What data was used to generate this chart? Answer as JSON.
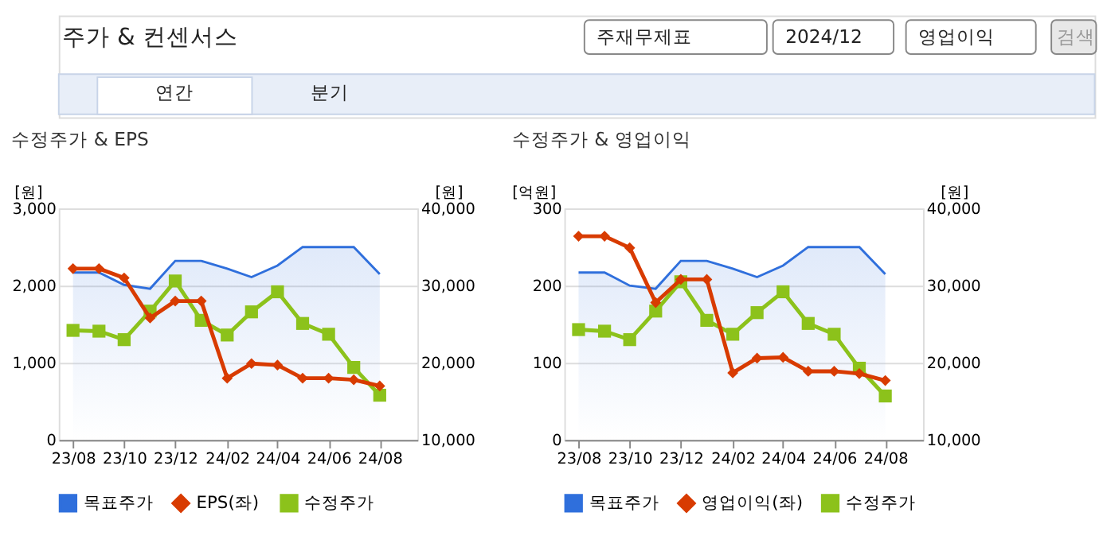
{
  "chart_data": [
    {
      "type": "other",
      "title": "주가 & 컨센서스",
      "annotations": [
        "주재무제표",
        "2024/12",
        "영업이익",
        "검색",
        "연간",
        "분기"
      ]
    },
    {
      "type": "line",
      "title": "수정주가 & EPS",
      "ylabel": "[원]",
      "y2label": "[원]",
      "x": [
        "2023-08",
        "2023-09",
        "2023-10",
        "2023-11",
        "2023-12",
        "2024-01",
        "2024-02",
        "2024-03",
        "2024-04",
        "2024-05",
        "2024-06",
        "2024-07",
        "2024-08"
      ],
      "xlim": [
        "2023-07-15",
        "2024-09-15"
      ],
      "xticks": [
        {
          "value": "2023-08",
          "label": "23/08"
        },
        {
          "value": "2023-10",
          "label": "23/10"
        },
        {
          "value": "2023-12",
          "label": "23/12"
        },
        {
          "value": "2024-02",
          "label": "24/02"
        },
        {
          "value": "2024-04",
          "label": "24/04"
        },
        {
          "value": "2024-06",
          "label": "24/06"
        },
        {
          "value": "2024-08",
          "label": "24/08"
        }
      ],
      "ylim": [
        0,
        3000
      ],
      "yticks": [
        0,
        {
          "value": 1000,
          "label": "1,000"
        },
        {
          "value": 2000,
          "label": "2,000"
        },
        {
          "value": 3000,
          "label": "3,000"
        }
      ],
      "y2lim": [
        10000,
        40000
      ],
      "y2ticks": [
        {
          "value": 10000,
          "label": "10,000"
        },
        {
          "value": 20000,
          "label": "20,000"
        },
        {
          "value": 30000,
          "label": "30,000"
        },
        {
          "value": 40000,
          "label": "40,000"
        }
      ],
      "grid": "y",
      "legend": "bottom",
      "line_style": "solid",
      "series": [
        {
          "name": "목표주가",
          "type": "area",
          "axis": "y2",
          "color": "#2f6fdc",
          "marker": "none",
          "values": [
            31700,
            31700,
            30100,
            29600,
            33200,
            33200,
            32200,
            31100,
            32600,
            35000,
            35000,
            35000,
            31500
          ]
        },
        {
          "name": "EPS(좌)",
          "type": "line",
          "color": "#d83b01",
          "marker": "diamond",
          "values": [
            2220,
            2220,
            2100,
            1580,
            1800,
            1800,
            800,
            990,
            970,
            800,
            800,
            780,
            700
          ]
        },
        {
          "name": "수정주가",
          "type": "line",
          "axis": "y2",
          "color": "#8cc21b",
          "marker": "square",
          "values": [
            24200,
            24100,
            23000,
            26700,
            30600,
            25500,
            23600,
            26600,
            29200,
            25100,
            23700,
            19400,
            15800
          ]
        }
      ]
    },
    {
      "type": "line",
      "title": "수정주가 & 영업이익",
      "ylabel": "[억원]",
      "y2label": "[원]",
      "x": [
        "2023-08",
        "2023-09",
        "2023-10",
        "2023-11",
        "2023-12",
        "2024-01",
        "2024-02",
        "2024-03",
        "2024-04",
        "2024-05",
        "2024-06",
        "2024-07",
        "2024-08"
      ],
      "xlim": [
        "2023-07-15",
        "2024-09-15"
      ],
      "xticks": [
        {
          "value": "2023-08",
          "label": "23/08"
        },
        {
          "value": "2023-10",
          "label": "23/10"
        },
        {
          "value": "2023-12",
          "label": "23/12"
        },
        {
          "value": "2024-02",
          "label": "24/02"
        },
        {
          "value": "2024-04",
          "label": "24/04"
        },
        {
          "value": "2024-06",
          "label": "24/06"
        },
        {
          "value": "2024-08",
          "label": "24/08"
        }
      ],
      "ylim": [
        0,
        300
      ],
      "yticks": [
        0,
        100,
        200,
        300
      ],
      "y2lim": [
        10000,
        40000
      ],
      "y2ticks": [
        {
          "value": 10000,
          "label": "10,000"
        },
        {
          "value": 20000,
          "label": "20,000"
        },
        {
          "value": 30000,
          "label": "30,000"
        },
        {
          "value": 40000,
          "label": "40,000"
        }
      ],
      "grid": "y",
      "legend": "bottom",
      "line_style": "solid",
      "series": [
        {
          "name": "목표주가",
          "type": "area",
          "axis": "y2",
          "color": "#2f6fdc",
          "marker": "none",
          "values": [
            31700,
            31700,
            30000,
            29600,
            33200,
            33200,
            32200,
            31100,
            32600,
            35000,
            35000,
            35000,
            31500
          ]
        },
        {
          "name": "영업이익(좌)",
          "type": "line",
          "color": "#d83b01",
          "marker": "diamond",
          "values": [
            264,
            264,
            249,
            178,
            208,
            208,
            87,
            106,
            107,
            89,
            89,
            86,
            77
          ]
        },
        {
          "name": "수정주가",
          "type": "line",
          "axis": "y2",
          "color": "#8cc21b",
          "marker": "square",
          "values": [
            24300,
            24100,
            23000,
            26700,
            30500,
            25500,
            23700,
            26500,
            29200,
            25100,
            23700,
            19300,
            15700
          ]
        }
      ]
    }
  ]
}
